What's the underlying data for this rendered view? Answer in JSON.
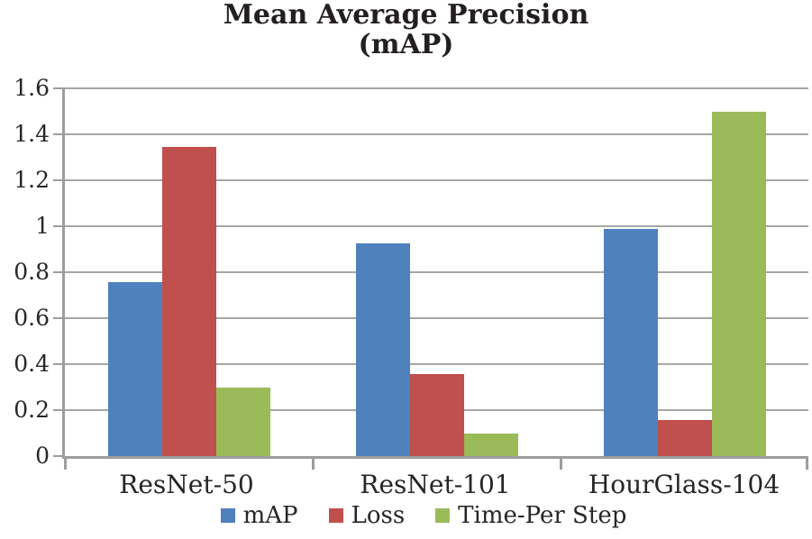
{
  "colors": {
    "gridline": "#a6a6a6",
    "axis": "#9d9d9d",
    "text": "#262626",
    "title_text": "#231f20",
    "background": "#ffffff"
  },
  "chart_data": {
    "type": "bar",
    "title": "Mean Average Precision (mAP)",
    "title_lines": [
      "Mean Average Precision",
      "(mAP)"
    ],
    "xlabel": "",
    "ylabel": "",
    "categories": [
      "ResNet-50",
      "ResNet-101",
      "HourGlass-104"
    ],
    "series": [
      {
        "name": "mAP",
        "color": "#4f81bd",
        "values": [
          0.755,
          0.925,
          0.99
        ]
      },
      {
        "name": "Loss",
        "color": "#c0504d",
        "values": [
          1.345,
          0.355,
          0.155
        ]
      },
      {
        "name": "Time-Per Step",
        "color": "#9bbb59",
        "values": [
          0.3,
          0.1,
          1.5
        ]
      }
    ],
    "ylim": [
      0,
      1.6
    ],
    "yticks": [
      1.6,
      1.4,
      1.2,
      1.0,
      0.8,
      0.6,
      0.4,
      0.2,
      0
    ],
    "ytick_labels": [
      "1.6",
      "1.4",
      "1.2",
      "1",
      "0.8",
      "0.6",
      "0.4",
      "0.2",
      "0"
    ],
    "grid": true,
    "legend_position": "bottom"
  }
}
